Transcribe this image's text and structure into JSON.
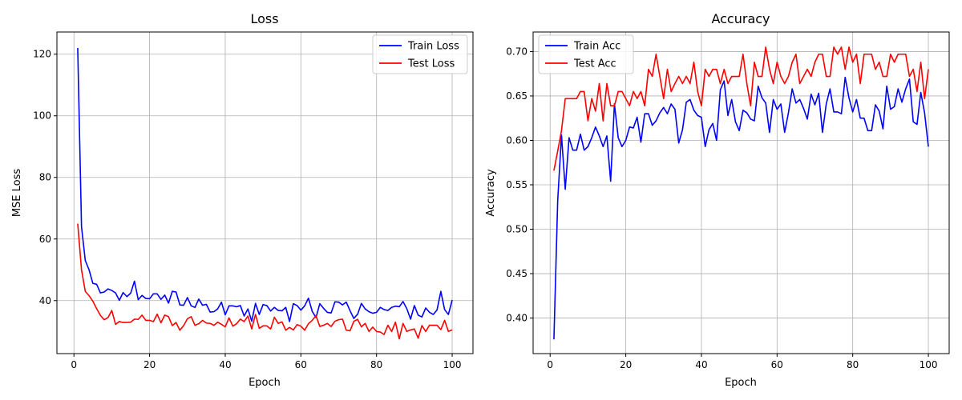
{
  "chart_data": [
    {
      "type": "line",
      "title": "Loss",
      "xlabel": "Epoch",
      "ylabel": "MSE Loss",
      "xlim": [
        -4.5,
        105.5
      ],
      "ylim": [
        22.8,
        127.2
      ],
      "xticks": [
        0,
        20,
        40,
        60,
        80,
        100
      ],
      "yticks": [
        40,
        60,
        80,
        100,
        120
      ],
      "grid": true,
      "legend": "top-right",
      "x_start": 1,
      "series": [
        {
          "name": "Train Loss",
          "color": "#0000ff",
          "values": [
            122.0,
            64.0,
            53.0,
            50.0,
            45.6,
            45.3,
            42.5,
            42.8,
            43.8,
            43.3,
            42.5,
            40.1,
            42.6,
            41.3,
            42.4,
            46.3,
            40.3,
            41.7,
            40.7,
            40.6,
            42.2,
            42.2,
            40.4,
            41.8,
            39.2,
            43.0,
            42.8,
            38.6,
            38.5,
            41.0,
            38.3,
            37.8,
            40.5,
            38.5,
            38.8,
            36.3,
            36.4,
            37.3,
            39.5,
            35.4,
            38.3,
            38.3,
            38.0,
            38.4,
            35.0,
            37.3,
            33.3,
            39.1,
            35.5,
            38.7,
            38.4,
            36.6,
            37.8,
            36.8,
            36.7,
            37.8,
            33.2,
            39.0,
            38.4,
            36.9,
            38.3,
            40.8,
            36.5,
            34.5,
            39.0,
            37.5,
            36.2,
            36.0,
            39.6,
            39.5,
            38.6,
            39.5,
            36.7,
            34.2,
            35.6,
            39.1,
            37.3,
            36.4,
            35.9,
            36.2,
            37.8,
            37.1,
            36.8,
            37.8,
            38.2,
            38.0,
            39.7,
            37.4,
            34.0,
            38.4,
            35.3,
            34.7,
            37.6,
            36.2,
            35.5,
            37.0,
            43.0,
            37.1,
            35.5,
            40.2
          ]
        },
        {
          "name": "Test Loss",
          "color": "#ff0000",
          "values": [
            65.0,
            50.0,
            43.0,
            41.6,
            39.8,
            37.4,
            35.2,
            33.8,
            34.5,
            36.8,
            32.3,
            33.2,
            32.9,
            32.9,
            33.0,
            34.0,
            33.9,
            35.3,
            33.6,
            33.6,
            33.2,
            35.6,
            32.8,
            35.3,
            34.8,
            31.9,
            32.9,
            30.4,
            31.9,
            34.1,
            34.8,
            32.0,
            32.5,
            33.6,
            32.7,
            32.6,
            32.0,
            33.0,
            32.3,
            31.5,
            34.4,
            31.7,
            32.5,
            34.0,
            33.2,
            35.0,
            30.8,
            35.5,
            31.0,
            31.8,
            31.8,
            30.8,
            34.6,
            32.6,
            33.1,
            30.4,
            31.3,
            30.5,
            32.2,
            31.7,
            30.4,
            32.5,
            33.6,
            35.1,
            31.6,
            32.0,
            32.6,
            31.6,
            33.3,
            33.8,
            34.0,
            30.4,
            30.2,
            33.3,
            33.9,
            31.5,
            32.6,
            30.0,
            31.4,
            30.0,
            29.8,
            29.0,
            32.0,
            30.0,
            33.0,
            27.6,
            32.6,
            30.0,
            30.5,
            30.8,
            27.8,
            31.9,
            30.0,
            32.0,
            32.0,
            32.0,
            30.6,
            33.6,
            30.0,
            30.5
          ]
        }
      ]
    },
    {
      "type": "line",
      "title": "Accuracy",
      "xlabel": "Epoch",
      "ylabel": "Accuracy",
      "xlim": [
        -4.5,
        105.5
      ],
      "ylim": [
        0.36,
        0.722
      ],
      "xticks": [
        0,
        20,
        40,
        60,
        80,
        100
      ],
      "yticks": [
        0.4,
        0.45,
        0.5,
        0.55,
        0.6,
        0.65,
        0.7
      ],
      "grid": true,
      "legend": "top-left",
      "x_start": 1,
      "series": [
        {
          "name": "Train Acc",
          "color": "#0000ff",
          "values": [
            0.376,
            0.532,
            0.606,
            0.545,
            0.603,
            0.589,
            0.589,
            0.607,
            0.589,
            0.593,
            0.603,
            0.615,
            0.605,
            0.593,
            0.605,
            0.554,
            0.641,
            0.603,
            0.593,
            0.6,
            0.615,
            0.614,
            0.626,
            0.598,
            0.63,
            0.63,
            0.617,
            0.622,
            0.631,
            0.637,
            0.63,
            0.641,
            0.635,
            0.597,
            0.612,
            0.643,
            0.646,
            0.634,
            0.628,
            0.626,
            0.593,
            0.612,
            0.619,
            0.6,
            0.657,
            0.667,
            0.628,
            0.646,
            0.621,
            0.611,
            0.634,
            0.631,
            0.624,
            0.622,
            0.661,
            0.648,
            0.642,
            0.609,
            0.646,
            0.635,
            0.641,
            0.609,
            0.631,
            0.658,
            0.642,
            0.646,
            0.636,
            0.624,
            0.652,
            0.64,
            0.653,
            0.609,
            0.641,
            0.658,
            0.632,
            0.632,
            0.63,
            0.671,
            0.648,
            0.632,
            0.646,
            0.625,
            0.625,
            0.611,
            0.611,
            0.64,
            0.633,
            0.613,
            0.661,
            0.635,
            0.638,
            0.658,
            0.643,
            0.658,
            0.669,
            0.621,
            0.618,
            0.654,
            0.631,
            0.593
          ]
        },
        {
          "name": "Test Acc",
          "color": "#ff0000",
          "values": [
            0.566,
            0.588,
            0.611,
            0.647,
            0.647,
            0.647,
            0.647,
            0.655,
            0.655,
            0.622,
            0.647,
            0.633,
            0.664,
            0.622,
            0.664,
            0.639,
            0.639,
            0.655,
            0.655,
            0.647,
            0.639,
            0.655,
            0.647,
            0.655,
            0.639,
            0.68,
            0.672,
            0.697,
            0.672,
            0.647,
            0.68,
            0.655,
            0.664,
            0.672,
            0.664,
            0.672,
            0.664,
            0.688,
            0.655,
            0.639,
            0.68,
            0.672,
            0.68,
            0.68,
            0.664,
            0.68,
            0.664,
            0.672,
            0.672,
            0.672,
            0.697,
            0.664,
            0.639,
            0.688,
            0.672,
            0.672,
            0.705,
            0.68,
            0.664,
            0.688,
            0.672,
            0.664,
            0.672,
            0.688,
            0.697,
            0.664,
            0.672,
            0.68,
            0.672,
            0.688,
            0.697,
            0.697,
            0.672,
            0.672,
            0.705,
            0.697,
            0.705,
            0.68,
            0.705,
            0.688,
            0.697,
            0.664,
            0.697,
            0.697,
            0.697,
            0.68,
            0.688,
            0.672,
            0.672,
            0.697,
            0.688,
            0.697,
            0.697,
            0.697,
            0.672,
            0.68,
            0.655,
            0.688,
            0.647,
            0.68
          ]
        }
      ]
    }
  ]
}
